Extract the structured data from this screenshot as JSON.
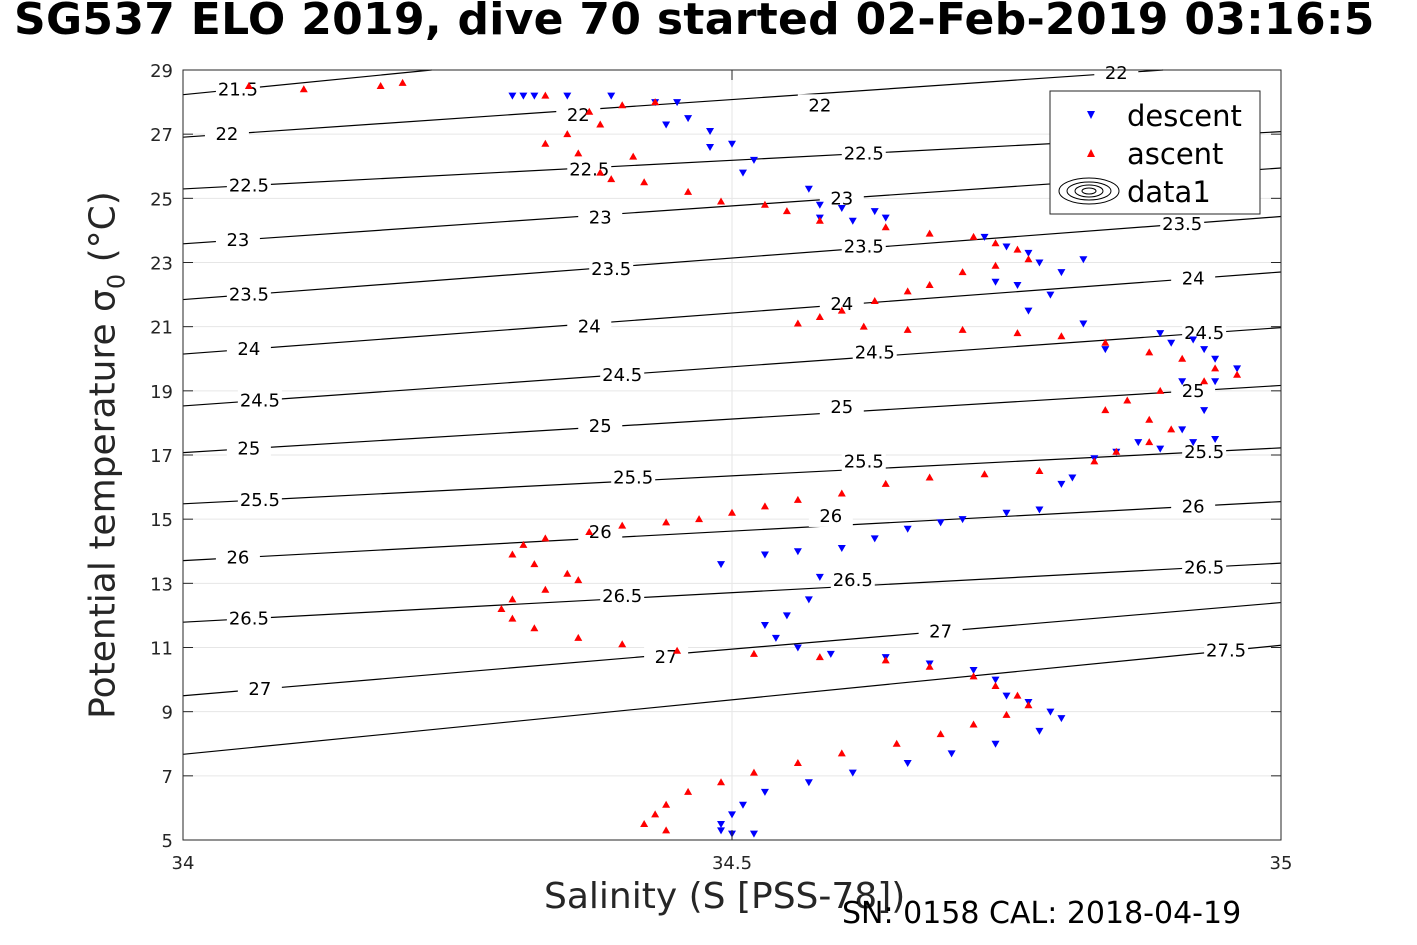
{
  "title": "SG537 ELO 2019, dive 70 started 02-Feb-2019 03:16:5",
  "footer": "SN: 0158  CAL: 2018-04-19",
  "chart_data": {
    "type": "scatter",
    "xlabel": "Salinity (S [PSS-78])",
    "ylabel_main": "Potential temperature ",
    "ylabel_sigma": "σ",
    "ylabel_sub": "0",
    "ylabel_unit": " (°C)",
    "xlim": [
      34,
      35
    ],
    "ylim": [
      5,
      29
    ],
    "xticks": [
      34,
      34.5,
      35
    ],
    "xtick_labels": [
      "34",
      "34.5",
      "35"
    ],
    "yticks": [
      5,
      7,
      9,
      11,
      13,
      15,
      17,
      19,
      21,
      23,
      25,
      27,
      29
    ],
    "ytick_labels": [
      "5",
      "7",
      "9",
      "11",
      "13",
      "15",
      "17",
      "19",
      "21",
      "23",
      "25",
      "27",
      "29"
    ],
    "grid": true,
    "legend_position": "top-right",
    "legend": [
      "descent",
      "ascent",
      "data1"
    ],
    "colors": {
      "descent": "#0000ff",
      "ascent": "#ff0000",
      "contour": "#000000",
      "grid": "#e6e6e6"
    },
    "series": [
      {
        "name": "descent",
        "marker": "triangle-down",
        "points": [
          [
            34.3,
            28.2
          ],
          [
            34.31,
            28.2
          ],
          [
            34.32,
            28.2
          ],
          [
            34.35,
            28.2
          ],
          [
            34.39,
            28.2
          ],
          [
            34.43,
            28
          ],
          [
            34.45,
            28
          ],
          [
            34.46,
            27.5
          ],
          [
            34.44,
            27.3
          ],
          [
            34.48,
            27.1
          ],
          [
            34.5,
            26.7
          ],
          [
            34.48,
            26.6
          ],
          [
            34.52,
            26.2
          ],
          [
            34.51,
            25.8
          ],
          [
            34.57,
            25.3
          ],
          [
            34.58,
            24.8
          ],
          [
            34.6,
            24.7
          ],
          [
            34.63,
            24.6
          ],
          [
            34.64,
            24.4
          ],
          [
            34.61,
            24.3
          ],
          [
            34.58,
            24.4
          ],
          [
            34.73,
            23.8
          ],
          [
            34.75,
            23.5
          ],
          [
            34.77,
            23.3
          ],
          [
            34.78,
            23
          ],
          [
            34.82,
            23.1
          ],
          [
            34.8,
            22.7
          ],
          [
            34.76,
            22.3
          ],
          [
            34.74,
            22.4
          ],
          [
            34.79,
            22
          ],
          [
            34.77,
            21.5
          ],
          [
            34.82,
            21.1
          ],
          [
            34.84,
            20.3
          ],
          [
            34.89,
            20.8
          ],
          [
            34.9,
            20.5
          ],
          [
            34.92,
            20.6
          ],
          [
            34.93,
            20.3
          ],
          [
            34.94,
            20
          ],
          [
            34.96,
            19.7
          ],
          [
            34.94,
            19.3
          ],
          [
            34.91,
            19.3
          ],
          [
            34.93,
            18.4
          ],
          [
            34.91,
            17.8
          ],
          [
            34.94,
            17.5
          ],
          [
            34.92,
            17.4
          ],
          [
            34.89,
            17.2
          ],
          [
            34.87,
            17.4
          ],
          [
            34.85,
            17.1
          ],
          [
            34.83,
            16.9
          ],
          [
            34.81,
            16.3
          ],
          [
            34.8,
            16.1
          ],
          [
            34.78,
            15.3
          ],
          [
            34.75,
            15.2
          ],
          [
            34.71,
            15
          ],
          [
            34.69,
            14.9
          ],
          [
            34.66,
            14.7
          ],
          [
            34.63,
            14.4
          ],
          [
            34.6,
            14.1
          ],
          [
            34.56,
            14
          ],
          [
            34.53,
            13.9
          ],
          [
            34.49,
            13.6
          ],
          [
            34.58,
            13.2
          ],
          [
            34.57,
            12.5
          ],
          [
            34.55,
            12
          ],
          [
            34.53,
            11.7
          ],
          [
            34.54,
            11.3
          ],
          [
            34.56,
            11
          ],
          [
            34.59,
            10.8
          ],
          [
            34.64,
            10.7
          ],
          [
            34.68,
            10.5
          ],
          [
            34.72,
            10.3
          ],
          [
            34.74,
            10
          ],
          [
            34.75,
            9.5
          ],
          [
            34.77,
            9.3
          ],
          [
            34.79,
            9
          ],
          [
            34.8,
            8.8
          ],
          [
            34.78,
            8.4
          ],
          [
            34.74,
            8
          ],
          [
            34.7,
            7.7
          ],
          [
            34.66,
            7.4
          ],
          [
            34.61,
            7.1
          ],
          [
            34.57,
            6.8
          ],
          [
            34.53,
            6.5
          ],
          [
            34.51,
            6.1
          ],
          [
            34.5,
            5.8
          ],
          [
            34.49,
            5.5
          ],
          [
            34.49,
            5.3
          ],
          [
            34.5,
            5.2
          ],
          [
            34.52,
            5.2
          ]
        ]
      },
      {
        "name": "ascent",
        "marker": "triangle-up",
        "points": [
          [
            34.2,
            28.6
          ],
          [
            34.18,
            28.5
          ],
          [
            34.11,
            28.4
          ],
          [
            34.06,
            28.5
          ],
          [
            34.33,
            28.2
          ],
          [
            34.4,
            27.9
          ],
          [
            34.43,
            28
          ],
          [
            34.37,
            27.7
          ],
          [
            34.38,
            27.3
          ],
          [
            34.35,
            27
          ],
          [
            34.33,
            26.7
          ],
          [
            34.36,
            26.4
          ],
          [
            34.41,
            26.3
          ],
          [
            34.38,
            25.8
          ],
          [
            34.39,
            25.6
          ],
          [
            34.42,
            25.5
          ],
          [
            34.46,
            25.2
          ],
          [
            34.49,
            24.9
          ],
          [
            34.53,
            24.8
          ],
          [
            34.55,
            24.6
          ],
          [
            34.58,
            24.3
          ],
          [
            34.64,
            24.1
          ],
          [
            34.68,
            23.9
          ],
          [
            34.72,
            23.8
          ],
          [
            34.74,
            23.6
          ],
          [
            34.76,
            23.4
          ],
          [
            34.77,
            23.1
          ],
          [
            34.74,
            22.9
          ],
          [
            34.71,
            22.7
          ],
          [
            34.68,
            22.3
          ],
          [
            34.66,
            22.1
          ],
          [
            34.63,
            21.8
          ],
          [
            34.6,
            21.5
          ],
          [
            34.58,
            21.3
          ],
          [
            34.56,
            21.1
          ],
          [
            34.62,
            21
          ],
          [
            34.66,
            20.9
          ],
          [
            34.71,
            20.9
          ],
          [
            34.76,
            20.8
          ],
          [
            34.8,
            20.7
          ],
          [
            34.84,
            20.5
          ],
          [
            34.88,
            20.2
          ],
          [
            34.91,
            20
          ],
          [
            34.94,
            19.7
          ],
          [
            34.96,
            19.5
          ],
          [
            34.93,
            19.3
          ],
          [
            34.89,
            19
          ],
          [
            34.86,
            18.7
          ],
          [
            34.84,
            18.4
          ],
          [
            34.88,
            18.1
          ],
          [
            34.9,
            17.8
          ],
          [
            34.88,
            17.4
          ],
          [
            34.85,
            17.1
          ],
          [
            34.83,
            16.8
          ],
          [
            34.78,
            16.5
          ],
          [
            34.73,
            16.4
          ],
          [
            34.68,
            16.3
          ],
          [
            34.64,
            16.1
          ],
          [
            34.6,
            15.8
          ],
          [
            34.56,
            15.6
          ],
          [
            34.53,
            15.4
          ],
          [
            34.5,
            15.2
          ],
          [
            34.47,
            15
          ],
          [
            34.44,
            14.9
          ],
          [
            34.4,
            14.8
          ],
          [
            34.37,
            14.6
          ],
          [
            34.33,
            14.4
          ],
          [
            34.31,
            14.2
          ],
          [
            34.3,
            13.9
          ],
          [
            34.32,
            13.6
          ],
          [
            34.35,
            13.3
          ],
          [
            34.36,
            13.1
          ],
          [
            34.33,
            12.8
          ],
          [
            34.3,
            12.5
          ],
          [
            34.29,
            12.2
          ],
          [
            34.3,
            11.9
          ],
          [
            34.32,
            11.6
          ],
          [
            34.36,
            11.3
          ],
          [
            34.4,
            11.1
          ],
          [
            34.45,
            10.9
          ],
          [
            34.52,
            10.8
          ],
          [
            34.58,
            10.7
          ],
          [
            34.64,
            10.6
          ],
          [
            34.68,
            10.4
          ],
          [
            34.72,
            10.1
          ],
          [
            34.74,
            9.8
          ],
          [
            34.76,
            9.5
          ],
          [
            34.77,
            9.2
          ],
          [
            34.75,
            8.9
          ],
          [
            34.72,
            8.6
          ],
          [
            34.69,
            8.3
          ],
          [
            34.65,
            8
          ],
          [
            34.6,
            7.7
          ],
          [
            34.56,
            7.4
          ],
          [
            34.52,
            7.1
          ],
          [
            34.49,
            6.8
          ],
          [
            34.46,
            6.5
          ],
          [
            34.44,
            6.1
          ],
          [
            34.43,
            5.8
          ],
          [
            34.42,
            5.5
          ],
          [
            34.44,
            5.3
          ]
        ]
      }
    ],
    "contour_levels": [
      {
        "label": "21.5",
        "s": 34.05,
        "t": 28.4
      },
      {
        "label": "22",
        "s": 34.04,
        "t": 27.0
      },
      {
        "label": "22",
        "s": 34.36,
        "t": 27.6
      },
      {
        "label": "22",
        "s": 34.58,
        "t": 27.9
      },
      {
        "label": "22",
        "s": 34.85,
        "t": 28.9
      },
      {
        "label": "22.5",
        "s": 34.06,
        "t": 25.4
      },
      {
        "label": "22.5",
        "s": 34.37,
        "t": 25.9
      },
      {
        "label": "22.5",
        "s": 34.62,
        "t": 26.4
      },
      {
        "label": "23",
        "s": 34.05,
        "t": 23.7
      },
      {
        "label": "23",
        "s": 34.38,
        "t": 24.4
      },
      {
        "label": "23",
        "s": 34.6,
        "t": 25.0
      },
      {
        "label": "23.5",
        "s": 34.06,
        "t": 22.0
      },
      {
        "label": "23.5",
        "s": 34.39,
        "t": 22.8
      },
      {
        "label": "23.5",
        "s": 34.62,
        "t": 23.5
      },
      {
        "label": "23.5",
        "s": 34.91,
        "t": 24.2
      },
      {
        "label": "24",
        "s": 34.06,
        "t": 20.3
      },
      {
        "label": "24",
        "s": 34.37,
        "t": 21.0
      },
      {
        "label": "24",
        "s": 34.6,
        "t": 21.7
      },
      {
        "label": "24",
        "s": 34.92,
        "t": 22.5
      },
      {
        "label": "24.5",
        "s": 34.07,
        "t": 18.7
      },
      {
        "label": "24.5",
        "s": 34.4,
        "t": 19.5
      },
      {
        "label": "24.5",
        "s": 34.63,
        "t": 20.2
      },
      {
        "label": "24.5",
        "s": 34.93,
        "t": 20.8
      },
      {
        "label": "25",
        "s": 34.06,
        "t": 17.2
      },
      {
        "label": "25",
        "s": 34.38,
        "t": 17.9
      },
      {
        "label": "25",
        "s": 34.6,
        "t": 18.5
      },
      {
        "label": "25",
        "s": 34.92,
        "t": 19.0
      },
      {
        "label": "25.5",
        "s": 34.07,
        "t": 15.6
      },
      {
        "label": "25.5",
        "s": 34.41,
        "t": 16.3
      },
      {
        "label": "25.5",
        "s": 34.62,
        "t": 16.8
      },
      {
        "label": "25.5",
        "s": 34.93,
        "t": 17.1
      },
      {
        "label": "26",
        "s": 34.05,
        "t": 13.8
      },
      {
        "label": "26",
        "s": 34.38,
        "t": 14.6
      },
      {
        "label": "26",
        "s": 34.59,
        "t": 15.1
      },
      {
        "label": "26",
        "s": 34.92,
        "t": 15.4
      },
      {
        "label": "26.5",
        "s": 34.06,
        "t": 11.9
      },
      {
        "label": "26.5",
        "s": 34.4,
        "t": 12.6
      },
      {
        "label": "26.5",
        "s": 34.61,
        "t": 13.1
      },
      {
        "label": "26.5",
        "s": 34.93,
        "t": 13.5
      },
      {
        "label": "27",
        "s": 34.07,
        "t": 9.7
      },
      {
        "label": "27",
        "s": 34.44,
        "t": 10.7
      },
      {
        "label": "27",
        "s": 34.69,
        "t": 11.5
      },
      {
        "label": "27.5",
        "s": 34.95,
        "t": 10.9
      }
    ]
  }
}
